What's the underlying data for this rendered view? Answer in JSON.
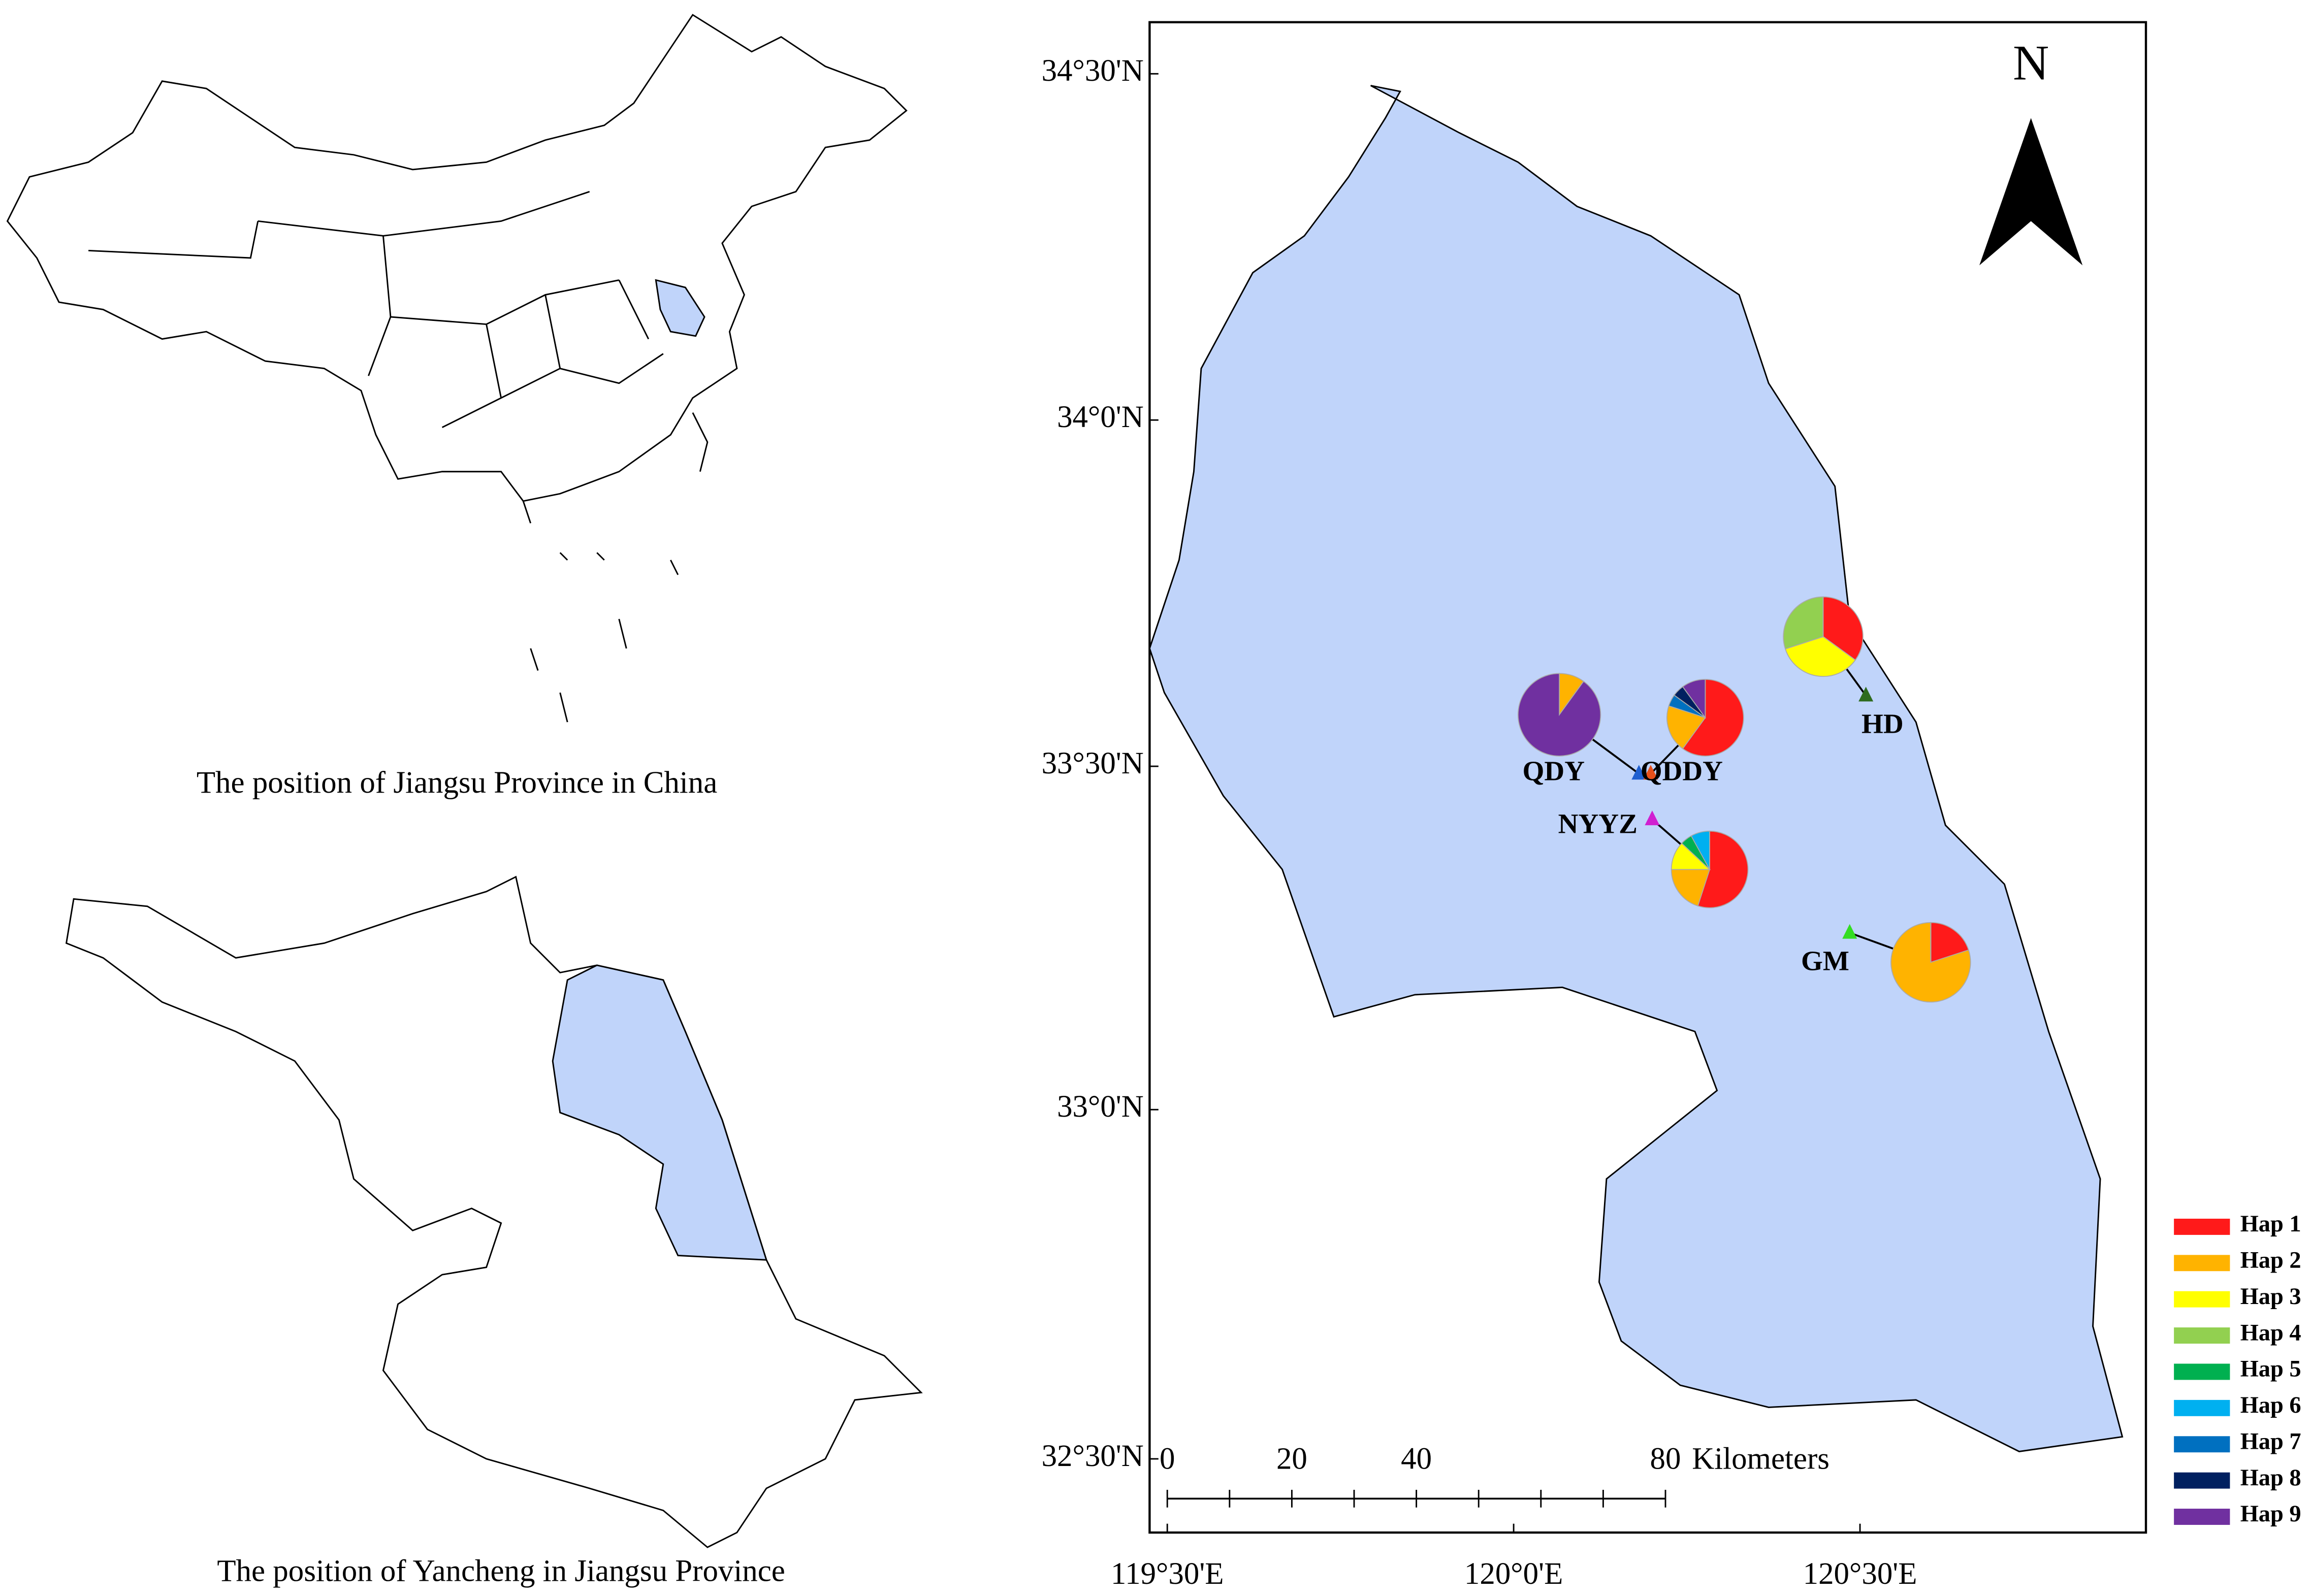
{
  "left_panels": [
    {
      "caption": "The position of Jiangsu Province in China"
    },
    {
      "caption": "The position of Yancheng  in Jiangsu Province"
    }
  ],
  "map": {
    "north": "N",
    "lat_labels": [
      "34°30'N",
      "34°0'N",
      "33°30'N",
      "33°0'N",
      "32°30'N"
    ],
    "lon_labels": [
      "119°30'E",
      "120°0'E",
      "120°30'E"
    ],
    "scale_bar": {
      "ticks": [
        0,
        20,
        40,
        80
      ],
      "unit": "Kilometers"
    },
    "sites": [
      {
        "name": "QDY",
        "marker_color": "#1f5fd0",
        "values": [
          0,
          10,
          0,
          0,
          0,
          0,
          0,
          0,
          90
        ]
      },
      {
        "name": "QDDY",
        "marker_color": "#e8501a",
        "values": [
          60,
          20,
          0,
          0,
          0,
          0,
          5,
          5,
          10
        ]
      },
      {
        "name": "HD",
        "marker_color": "#2e6b1e",
        "values": [
          35,
          0,
          35,
          30,
          0,
          0,
          0,
          0,
          0
        ]
      },
      {
        "name": "NYYZ",
        "marker_color": "#d020d0",
        "values": [
          55,
          20,
          12,
          0,
          5,
          8,
          0,
          0,
          0
        ]
      },
      {
        "name": "GM",
        "marker_color": "#33dd22",
        "values": [
          20,
          80,
          0,
          0,
          0,
          0,
          0,
          0,
          0
        ]
      }
    ],
    "legend": [
      {
        "label": "Hap 1",
        "color": "#ff1a1a"
      },
      {
        "label": "Hap 2",
        "color": "#ffb300"
      },
      {
        "label": "Hap 3",
        "color": "#ffff00"
      },
      {
        "label": "Hap 4",
        "color": "#92d050"
      },
      {
        "label": "Hap 5",
        "color": "#00b050"
      },
      {
        "label": "Hap 6",
        "color": "#00b0f0"
      },
      {
        "label": "Hap 7",
        "color": "#0070c0"
      },
      {
        "label": "Hap 8",
        "color": "#002060"
      },
      {
        "label": "Hap 9",
        "color": "#7030a0"
      }
    ]
  }
}
